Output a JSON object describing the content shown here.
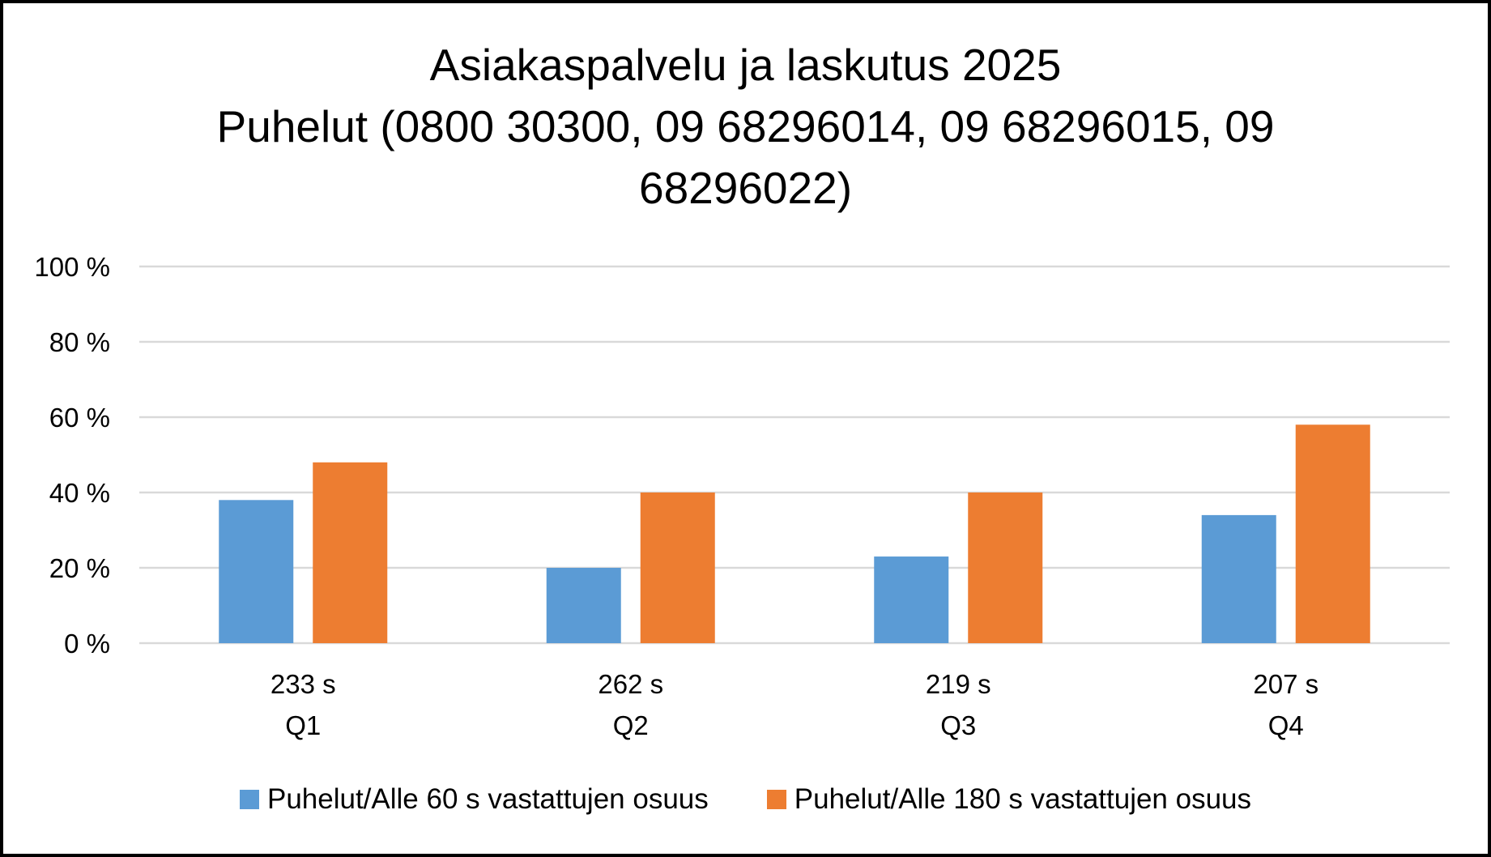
{
  "chart_data": {
    "type": "bar",
    "title": [
      "Asiakaspalvelu ja laskutus 2025",
      "Puhelut (0800 30300, 09 68296014, 09 68296015, 09",
      "68296022)"
    ],
    "categories": [
      [
        "233 s",
        "Q1"
      ],
      [
        "262 s",
        "Q2"
      ],
      [
        "219 s",
        "Q3"
      ],
      [
        "207 s",
        "Q4"
      ]
    ],
    "series": [
      {
        "name": "Puhelut/Alle 60 s vastattujen osuus",
        "color": "#5B9BD5",
        "values": [
          38,
          20,
          23,
          34
        ]
      },
      {
        "name": "Puhelut/Alle 180 s vastattujen osuus",
        "color": "#ED7D31",
        "values": [
          48,
          40,
          40,
          58
        ]
      }
    ],
    "ylim": [
      0,
      100
    ],
    "yticks": [
      0,
      20,
      40,
      60,
      80,
      100
    ],
    "ytick_labels": [
      "0 %",
      "20 %",
      "40 %",
      "60 %",
      "80 %",
      "100 %"
    ],
    "grid": true,
    "gridline_color": "#D9D9D9",
    "legend_position": "bottom"
  }
}
